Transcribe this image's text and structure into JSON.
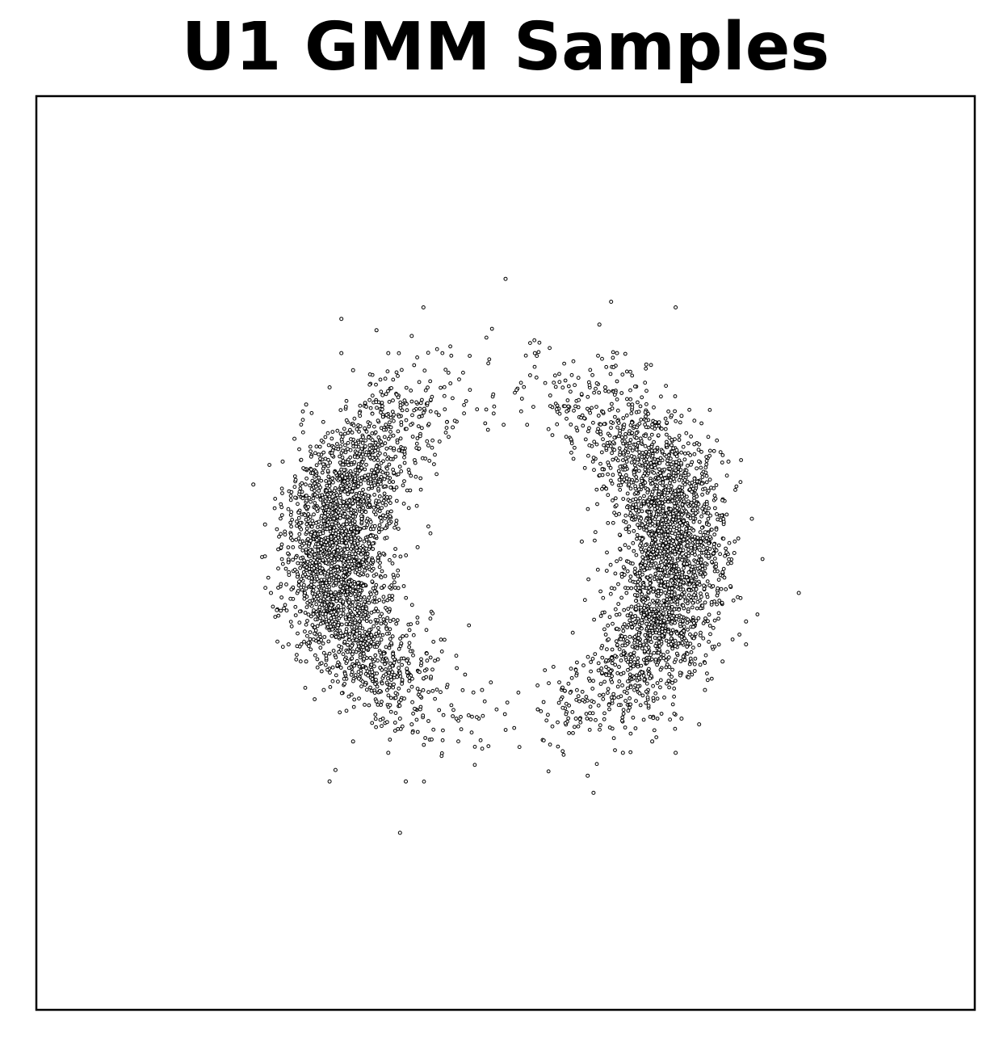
{
  "chart_data": {
    "type": "scatter",
    "title": "U1 GMM Samples",
    "xlabel": "",
    "ylabel": "",
    "xlim": [
      -8,
      8
    ],
    "ylim": [
      -8,
      8
    ],
    "xticks": [],
    "yticks": [],
    "grid": false,
    "legend": "none",
    "colors": {
      "marker_edge": "#000000",
      "marker_face": "#ffffff",
      "frame": "#000000",
      "background": "#ffffff"
    },
    "series": [
      {
        "points": [
          [
            -1.5,
            0.1
          ],
          [
            -4.1,
            0.5
          ],
          [
            -3.8,
            1.6
          ],
          [
            -3.9,
            -1.0
          ],
          [
            -4.0,
            -0.7
          ],
          [
            -3.6,
            2.0
          ],
          [
            -3.4,
            2.6
          ],
          [
            -3.0,
            2.9
          ],
          [
            -2.6,
            3.2
          ],
          [
            -2.5,
            -2.2
          ],
          [
            -2.2,
            -2.6
          ],
          [
            -1.8,
            -2.9
          ],
          [
            -2.6,
            -3.3
          ],
          [
            -2.0,
            -3.5
          ],
          [
            -1.7,
            -4.0
          ],
          [
            -2.8,
            3.5
          ],
          [
            -2.0,
            3.5
          ],
          [
            -1.6,
            3.8
          ],
          [
            -3.4,
            -1.9
          ],
          [
            -3.1,
            -2.4
          ],
          [
            1.3,
            0.2
          ],
          [
            3.9,
            0.0
          ],
          [
            4.1,
            -1.2
          ],
          [
            3.8,
            1.6
          ],
          [
            4.2,
            0.6
          ],
          [
            3.7,
            -1.9
          ],
          [
            3.4,
            -2.4
          ],
          [
            3.0,
            -2.9
          ],
          [
            2.5,
            -3.3
          ],
          [
            2.5,
            2.2
          ],
          [
            2.1,
            2.6
          ],
          [
            1.7,
            2.9
          ],
          [
            2.4,
            3.3
          ],
          [
            1.9,
            3.5
          ],
          [
            1.6,
            4.0
          ],
          [
            2.9,
            -3.5
          ],
          [
            2.0,
            -3.5
          ],
          [
            1.4,
            -3.9
          ],
          [
            3.3,
            1.9
          ],
          [
            3.0,
            2.4
          ],
          [
            -2.8,
            4.1
          ],
          [
            -1.4,
            4.3
          ],
          [
            0.0,
            4.8
          ],
          [
            1.8,
            4.4
          ],
          [
            2.9,
            4.3
          ],
          [
            5.0,
            -0.7
          ],
          [
            1.5,
            -4.2
          ],
          [
            -1.8,
            -4.9
          ],
          [
            -3.0,
            -4.0
          ],
          [
            -0.4,
            -2.4
          ],
          [
            -1.6,
            -3.0
          ],
          [
            -0.9,
            2.2
          ],
          [
            0.5,
            3.5
          ],
          [
            1.2,
            -2.9
          ],
          [
            -4.3,
            1.2
          ],
          [
            -3.7,
            -1.6
          ],
          [
            4.1,
            -1.6
          ],
          [
            3.3,
            -3.0
          ],
          [
            -2.9,
            -3.8
          ],
          [
            -2.2,
            3.9
          ]
        ]
      }
    ]
  }
}
